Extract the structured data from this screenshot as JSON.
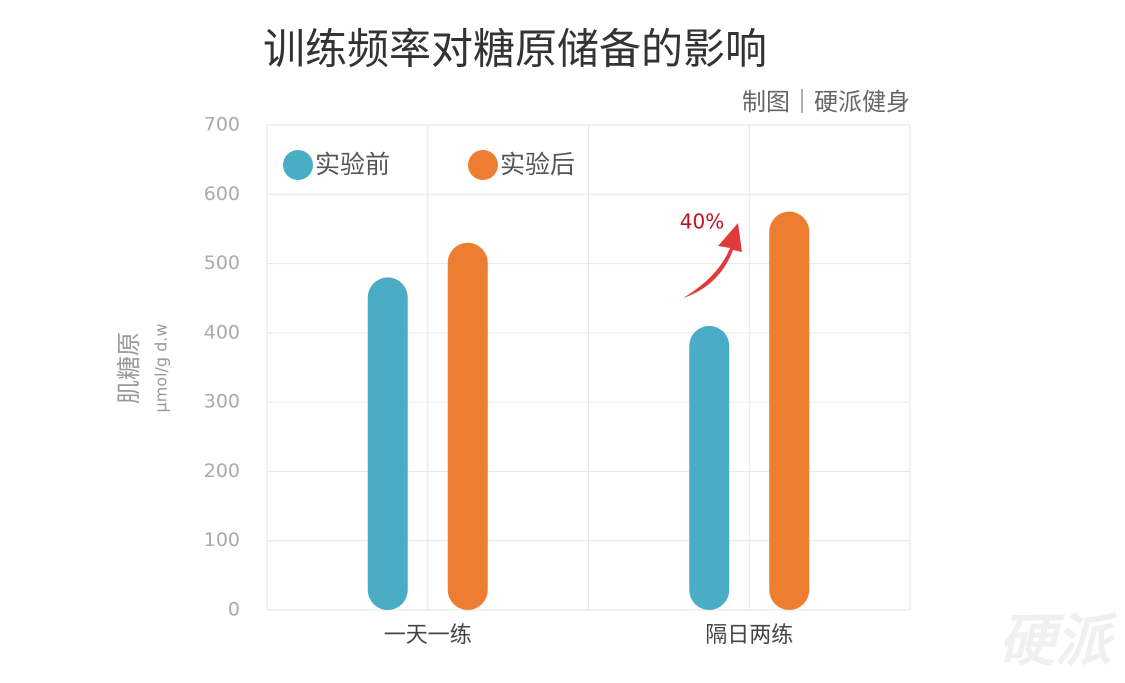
{
  "chart_data": {
    "type": "bar",
    "title": "训练频率对糖原储备的影响",
    "subtitle": "制图｜硬派健身",
    "y_label": "肌糖原",
    "y_unit": "μmol/g d.w",
    "categories": [
      "一天一练",
      "隔日两练"
    ],
    "series": [
      {
        "name": "实验前",
        "color": "#4bacc6",
        "values": [
          480,
          410
        ]
      },
      {
        "name": "实验后",
        "color": "#ed7d31",
        "values": [
          530,
          575
        ]
      }
    ],
    "ylim": [
      0,
      700
    ],
    "yticks": [
      0,
      100,
      200,
      300,
      400,
      500,
      600,
      700
    ],
    "grid": true,
    "legend": "top-left",
    "annotation": "40%",
    "watermark": "硬派"
  }
}
